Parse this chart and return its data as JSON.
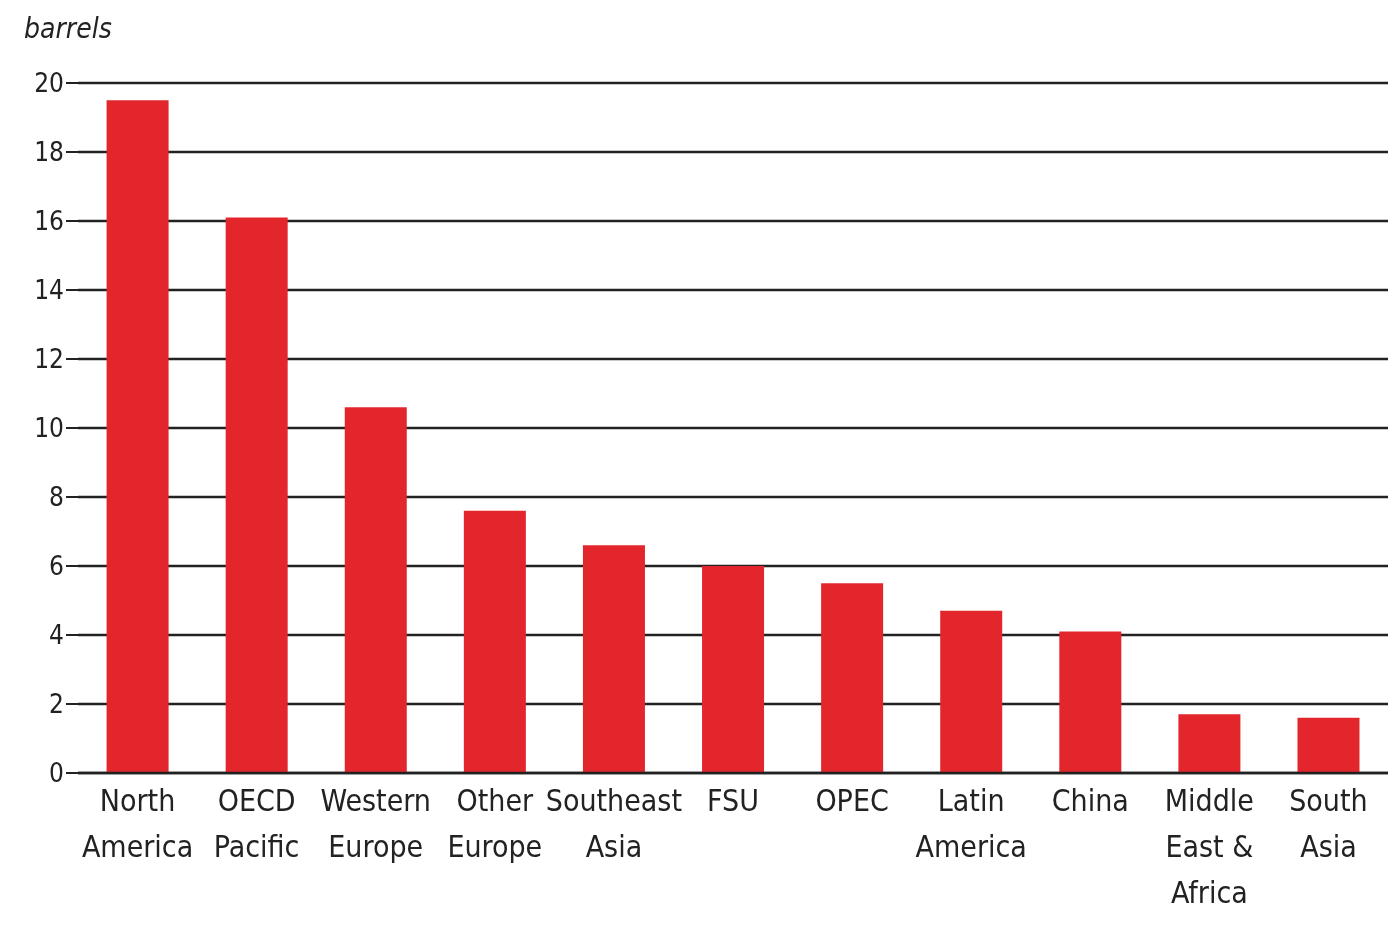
{
  "chart_data": {
    "type": "bar",
    "ylabel": "barrels",
    "categories": [
      "North America",
      "OECD Pacific",
      "Western Europe",
      "Other Europe",
      "Southeast Asia",
      "FSU",
      "OPEC",
      "Latin America",
      "China",
      "Middle East & Africa",
      "South Asia"
    ],
    "values": [
      19.5,
      16.1,
      10.6,
      7.6,
      6.6,
      6.0,
      5.5,
      4.7,
      4.1,
      1.7,
      1.6
    ],
    "color": "#e3262b",
    "ylim": [
      0,
      20
    ],
    "yticks": [
      0,
      2,
      4,
      6,
      8,
      10,
      12,
      14,
      16,
      18,
      20
    ],
    "grid": "y"
  }
}
